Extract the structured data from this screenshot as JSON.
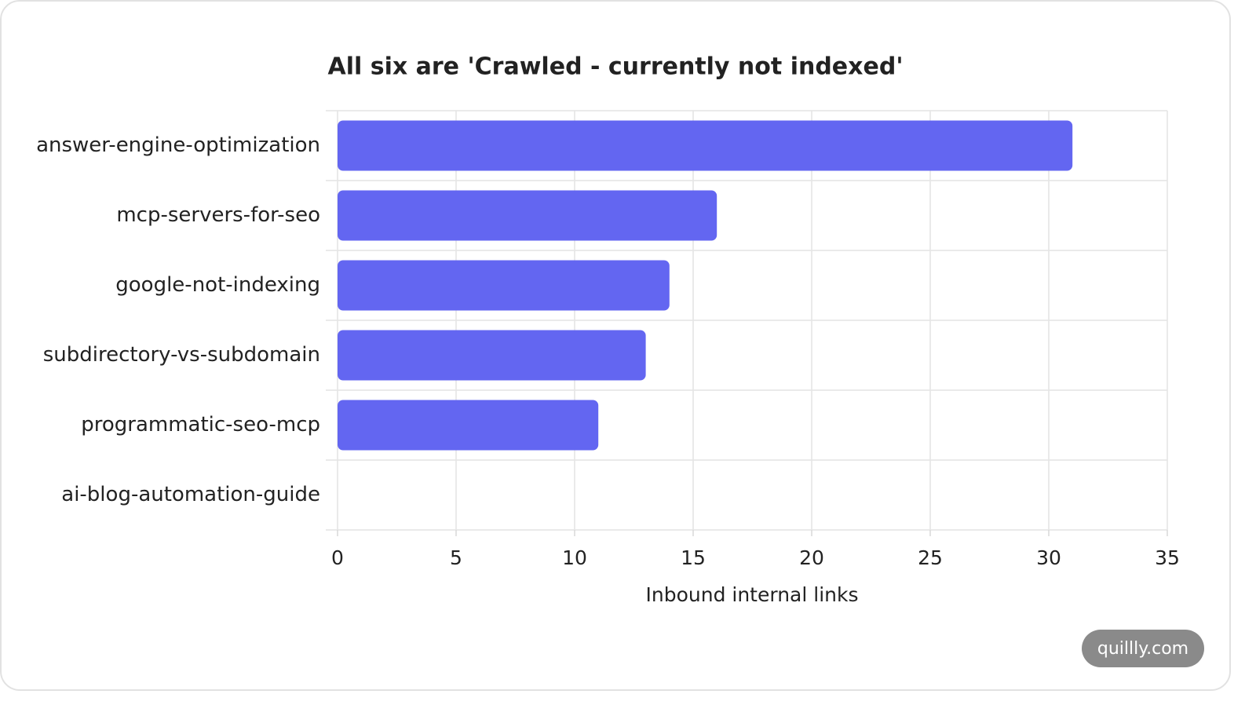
{
  "chart_data": {
    "type": "bar",
    "orientation": "horizontal",
    "title": "All six are 'Crawled - currently not indexed'",
    "categories": [
      "answer-engine-optimization",
      "mcp-servers-for-seo",
      "google-not-indexing",
      "subdirectory-vs-subdomain",
      "programmatic-seo-mcp",
      "ai-blog-automation-guide"
    ],
    "values": [
      31,
      16,
      14,
      13,
      11,
      0
    ],
    "color": "#6366f1",
    "xlabel": "Inbound internal links",
    "xlim": [
      0,
      35
    ],
    "xticks": [
      0,
      5,
      10,
      15,
      20,
      25,
      30,
      35
    ],
    "grid": true
  },
  "watermark": "quillly.com"
}
